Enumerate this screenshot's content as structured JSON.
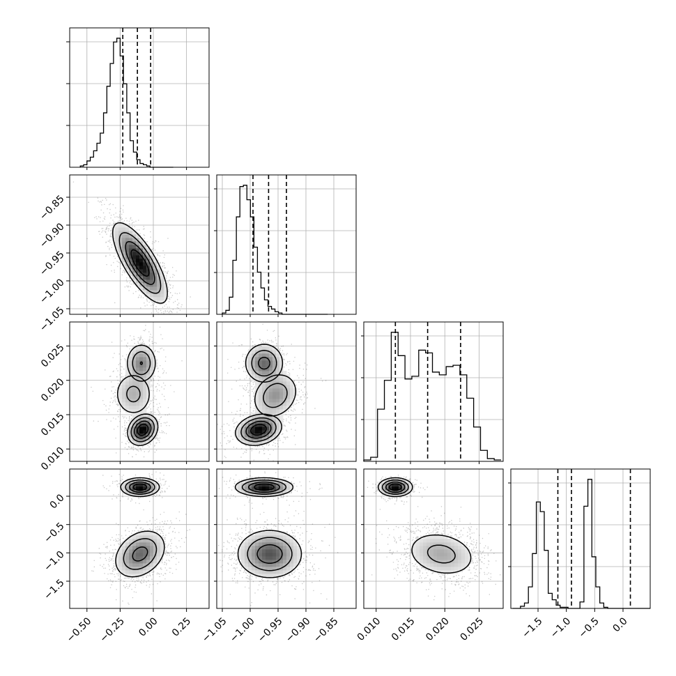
{
  "chart_data": {
    "type": "corner",
    "parameters": [
      {
        "range": [
          -0.63,
          0.42
        ],
        "ticks": [
          -0.5,
          -0.25,
          0.0,
          0.25
        ],
        "tick_labels": [
          "−0.50",
          "−0.25",
          "0.00",
          "0.25"
        ],
        "quantiles": [
          -0.23,
          -0.12,
          -0.02
        ],
        "hist": {
          "start": -0.55,
          "step": 0.025,
          "values": [
            0.01,
            0.02,
            0.05,
            0.08,
            0.13,
            0.19,
            0.27,
            0.43,
            0.64,
            0.82,
            0.99,
            1.02,
            0.88,
            0.66,
            0.43,
            0.21,
            0.12,
            0.06,
            0.03,
            0.02,
            0.01,
            0,
            0,
            0,
            0,
            0,
            0,
            0
          ]
        }
      },
      {
        "range": [
          -1.06,
          -0.81
        ],
        "ticks": [
          -1.05,
          -1.0,
          -0.95,
          -0.9,
          -0.85
        ],
        "tick_labels": [
          "−1.05",
          "−1.00",
          "−0.95",
          "−0.90",
          "−0.85"
        ],
        "quantiles": [
          -0.995,
          -0.967,
          -0.935
        ],
        "hist": {
          "start": -1.05,
          "step": 0.0063,
          "values": [
            0.01,
            0.03,
            0.13,
            0.41,
            0.74,
            0.97,
            0.98,
            0.87,
            0.74,
            0.51,
            0.32,
            0.2,
            0.11,
            0.06,
            0.04,
            0.02,
            0.01,
            0,
            0,
            0,
            0,
            0,
            0,
            0,
            0,
            0,
            0,
            0,
            0,
            0
          ]
        }
      },
      {
        "range": [
          0.0082,
          0.0285
        ],
        "ticks": [
          0.01,
          0.015,
          0.02,
          0.025
        ],
        "tick_labels": [
          "0.010",
          "0.015",
          "0.020",
          "0.025"
        ],
        "quantiles": [
          0.0128,
          0.0175,
          0.0223
        ],
        "hist": {
          "start": 0.0082,
          "step": 0.001,
          "values": [
            0.01,
            0.03,
            0.38,
            0.59,
            0.94,
            0.77,
            0.6,
            0.62,
            0.81,
            0.79,
            0.65,
            0.63,
            0.69,
            0.7,
            0.63,
            0.46,
            0.25,
            0.08,
            0.02,
            0.01
          ]
        }
      },
      {
        "range": [
          -1.98,
          0.48
        ],
        "ticks": [
          -1.5,
          -1.0,
          -0.5,
          0.0
        ],
        "tick_labels": [
          "−1.5",
          "−1.0",
          "−0.5",
          "0.0"
        ],
        "quantiles": [
          -1.15,
          -0.91,
          0.13
        ],
        "hist": {
          "start": -1.95,
          "step": 0.07,
          "values": [
            0,
            0,
            0.02,
            0.05,
            0.2,
            0.51,
            0.99,
            0.9,
            0.54,
            0.14,
            0.08,
            0.03,
            0.01,
            0.01,
            0,
            0,
            0,
            0.06,
            0.95,
            1.2,
            0.48,
            0.2,
            0.05,
            0.01,
            0,
            0,
            0,
            0,
            0,
            0,
            0,
            0,
            0,
            0,
            0,
            0
          ]
        }
      }
    ],
    "pairs": [
      {
        "row": 1,
        "col": 0,
        "blobs": [
          {
            "cx": -0.1,
            "cy": -0.968,
            "sx": 0.1,
            "sy": 0.035,
            "rho": -0.75,
            "w": 1.0
          }
        ]
      },
      {
        "row": 2,
        "col": 0,
        "blobs": [
          {
            "cx": -0.08,
            "cy": 0.0128,
            "sx": 0.055,
            "sy": 0.0011,
            "rho": 0.2,
            "w": 0.38
          },
          {
            "cx": -0.15,
            "cy": 0.018,
            "sx": 0.08,
            "sy": 0.0018,
            "rho": 0.0,
            "w": 0.32
          },
          {
            "cx": -0.09,
            "cy": 0.0225,
            "sx": 0.06,
            "sy": 0.0015,
            "rho": 0.0,
            "w": 0.3
          }
        ]
      },
      {
        "row": 2,
        "col": 1,
        "blobs": [
          {
            "cx": -0.985,
            "cy": 0.0128,
            "sx": 0.02,
            "sy": 0.0011,
            "rho": 0.2,
            "w": 0.38
          },
          {
            "cx": -0.955,
            "cy": 0.0178,
            "sx": 0.022,
            "sy": 0.0018,
            "rho": 0.2,
            "w": 0.32
          },
          {
            "cx": -0.975,
            "cy": 0.0225,
            "sx": 0.018,
            "sy": 0.0015,
            "rho": 0.0,
            "w": 0.3
          }
        ]
      },
      {
        "row": 3,
        "col": 0,
        "blobs": [
          {
            "cx": -0.1,
            "cy": 0.16,
            "sx": 0.07,
            "sy": 0.08,
            "rho": 0.0,
            "w": 0.3
          },
          {
            "cx": -0.1,
            "cy": -1.02,
            "sx": 0.1,
            "sy": 0.22,
            "rho": 0.3,
            "w": 0.7
          }
        ]
      },
      {
        "row": 3,
        "col": 1,
        "blobs": [
          {
            "cx": -0.975,
            "cy": 0.16,
            "sx": 0.025,
            "sy": 0.08,
            "rho": 0.0,
            "w": 0.3
          },
          {
            "cx": -0.965,
            "cy": -1.02,
            "sx": 0.03,
            "sy": 0.22,
            "rho": 0.0,
            "w": 0.7
          }
        ]
      },
      {
        "row": 3,
        "col": 2,
        "blobs": [
          {
            "cx": 0.0128,
            "cy": 0.16,
            "sx": 0.0012,
            "sy": 0.08,
            "rho": 0.0,
            "w": 0.3
          },
          {
            "cx": 0.0195,
            "cy": -1.02,
            "sx": 0.0028,
            "sy": 0.22,
            "rho": -0.2,
            "w": 0.7
          }
        ]
      }
    ]
  }
}
